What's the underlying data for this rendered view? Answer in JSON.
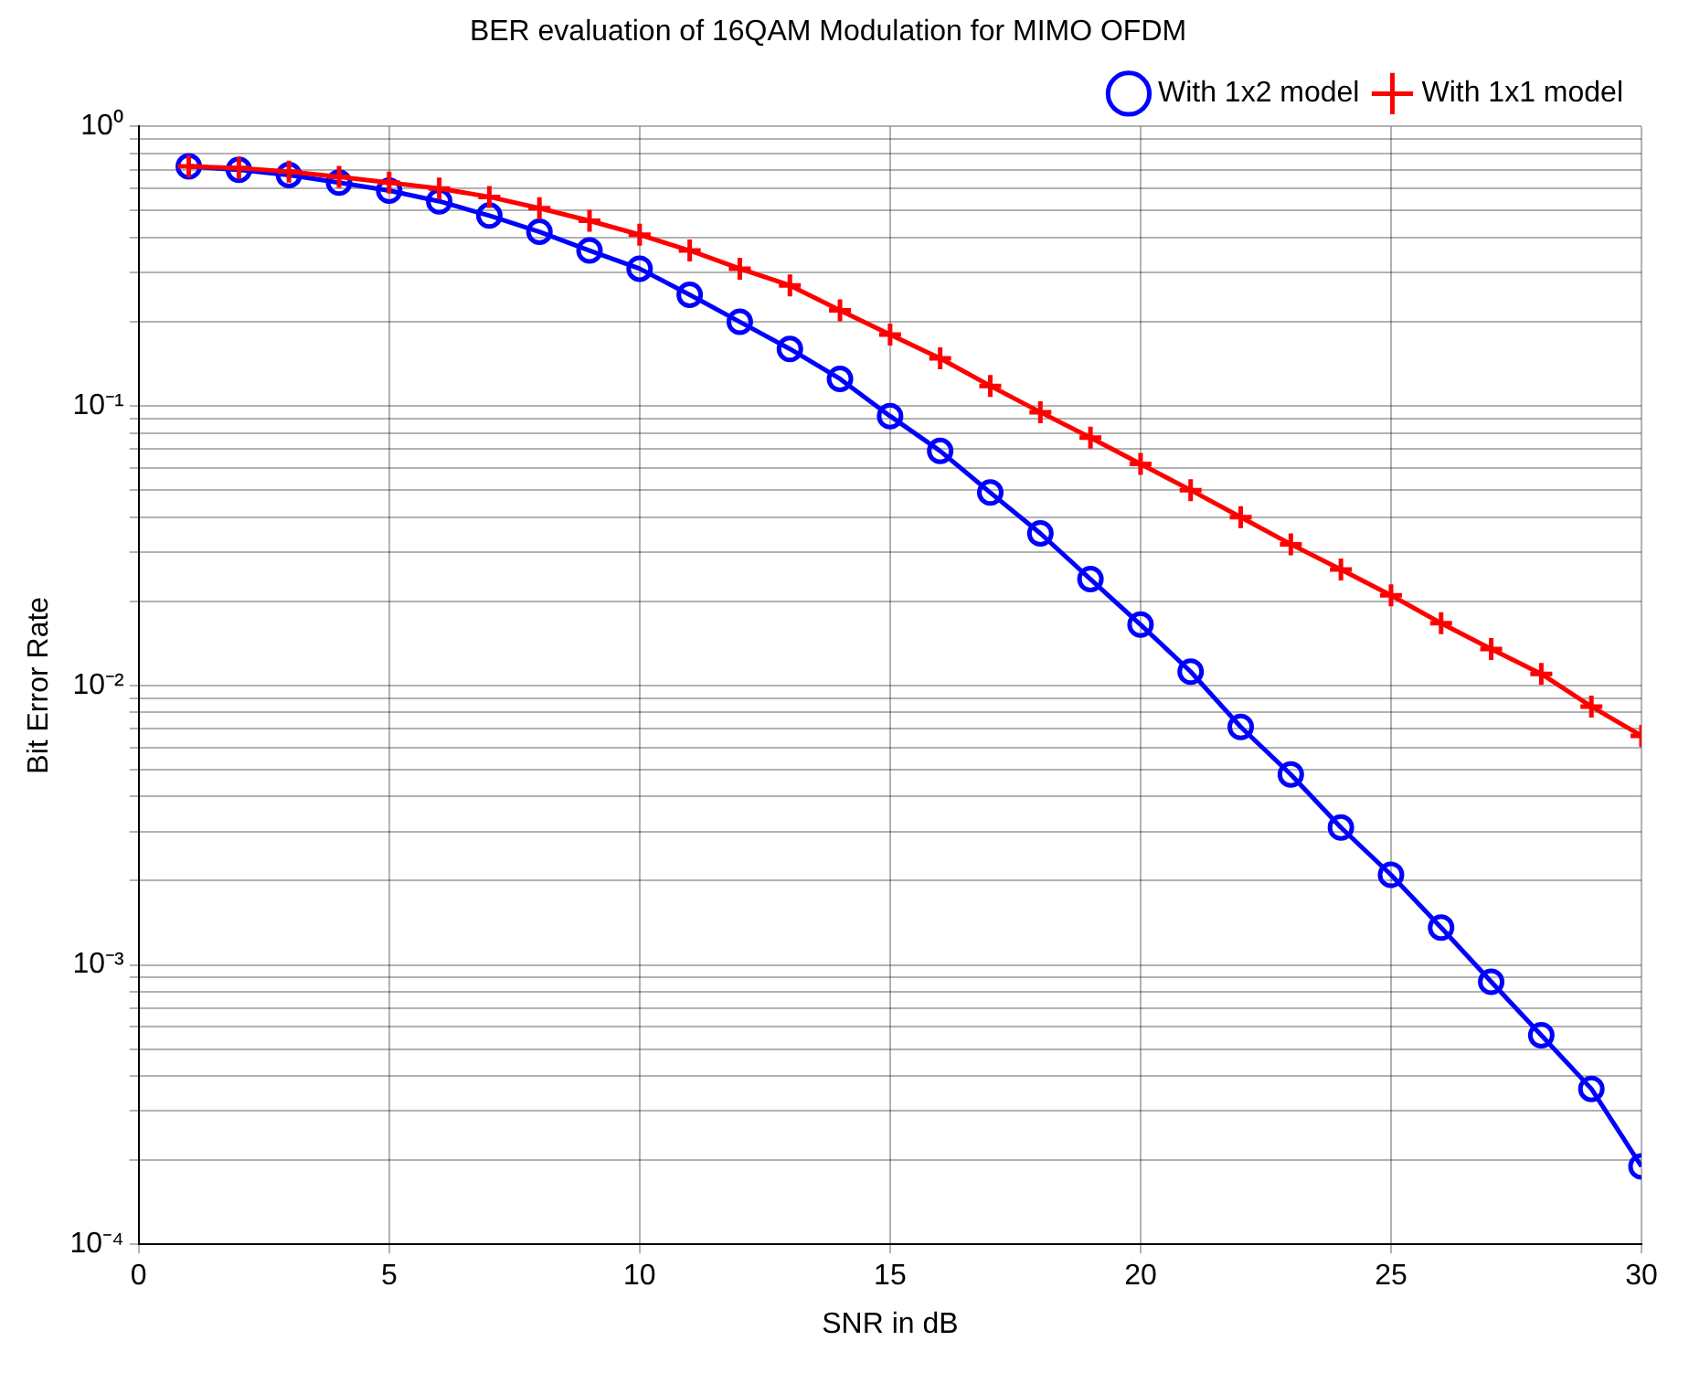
{
  "chart_data": {
    "type": "line",
    "title": "BER evaluation of 16QAM Modulation for MIMO OFDM",
    "xlabel": "SNR in dB",
    "ylabel": "Bit Error Rate",
    "x": [
      1,
      2,
      3,
      4,
      5,
      6,
      7,
      8,
      9,
      10,
      11,
      12,
      13,
      14,
      15,
      16,
      17,
      18,
      19,
      20,
      21,
      22,
      23,
      24,
      25,
      26,
      27,
      28,
      29,
      30
    ],
    "series": [
      {
        "name": "With 1x2 model",
        "color": "#0000ff",
        "marker": "circle",
        "values": [
          0.72,
          0.7,
          0.67,
          0.63,
          0.59,
          0.54,
          0.48,
          0.42,
          0.36,
          0.31,
          0.25,
          0.2,
          0.16,
          0.125,
          0.092,
          0.069,
          0.049,
          0.035,
          0.024,
          0.0165,
          0.0112,
          0.0071,
          0.0048,
          0.0031,
          0.0021,
          0.00136,
          0.00087,
          0.00056,
          0.00036,
          0.00019
        ]
      },
      {
        "name": "With 1x1 model",
        "color": "#ff0000",
        "marker": "cross",
        "values": [
          0.72,
          0.71,
          0.69,
          0.66,
          0.63,
          0.6,
          0.56,
          0.51,
          0.46,
          0.41,
          0.36,
          0.31,
          0.27,
          0.22,
          0.18,
          0.148,
          0.118,
          0.095,
          0.077,
          0.062,
          0.05,
          0.04,
          0.032,
          0.026,
          0.021,
          0.0167,
          0.0135,
          0.011,
          0.0084,
          0.0066
        ]
      }
    ],
    "log": "y",
    "grid": true,
    "legend": "top right",
    "line_style": "solid",
    "xlim": [
      0,
      30
    ],
    "xticks": [
      0,
      5,
      10,
      15,
      20,
      25,
      30
    ],
    "ylim": [
      0.0001,
      1
    ],
    "yticks": [
      {
        "value": 0.0001,
        "label": "10⁻⁴"
      },
      {
        "value": 0.0002,
        "label": null
      },
      {
        "value": 0.0003,
        "label": null
      },
      {
        "value": 0.0004,
        "label": null
      },
      {
        "value": 0.0005,
        "label": null
      },
      {
        "value": 0.0006,
        "label": null
      },
      {
        "value": 0.0007,
        "label": null
      },
      {
        "value": 0.0008,
        "label": null
      },
      {
        "value": 0.0009,
        "label": null
      },
      {
        "value": 0.001,
        "label": "10⁻³"
      },
      {
        "value": 0.002,
        "label": null
      },
      {
        "value": 0.003,
        "label": null
      },
      {
        "value": 0.004,
        "label": null
      },
      {
        "value": 0.005,
        "label": null
      },
      {
        "value": 0.006,
        "label": null
      },
      {
        "value": 0.007,
        "label": null
      },
      {
        "value": 0.008,
        "label": null
      },
      {
        "value": 0.009,
        "label": null
      },
      {
        "value": 0.01,
        "label": "10⁻²"
      },
      {
        "value": 0.02,
        "label": null
      },
      {
        "value": 0.03,
        "label": null
      },
      {
        "value": 0.04,
        "label": null
      },
      {
        "value": 0.05,
        "label": null
      },
      {
        "value": 0.06,
        "label": null
      },
      {
        "value": 0.07,
        "label": null
      },
      {
        "value": 0.08,
        "label": null
      },
      {
        "value": 0.09,
        "label": null
      },
      {
        "value": 0.1,
        "label": "10⁻¹"
      },
      {
        "value": 0.2,
        "label": null
      },
      {
        "value": 0.3,
        "label": null
      },
      {
        "value": 0.4,
        "label": null
      },
      {
        "value": 0.5,
        "label": null
      },
      {
        "value": 0.6,
        "label": null
      },
      {
        "value": 0.7,
        "label": null
      },
      {
        "value": 0.8,
        "label": null
      },
      {
        "value": 0.9,
        "label": null
      },
      {
        "value": 1,
        "label": "10⁰"
      }
    ]
  }
}
